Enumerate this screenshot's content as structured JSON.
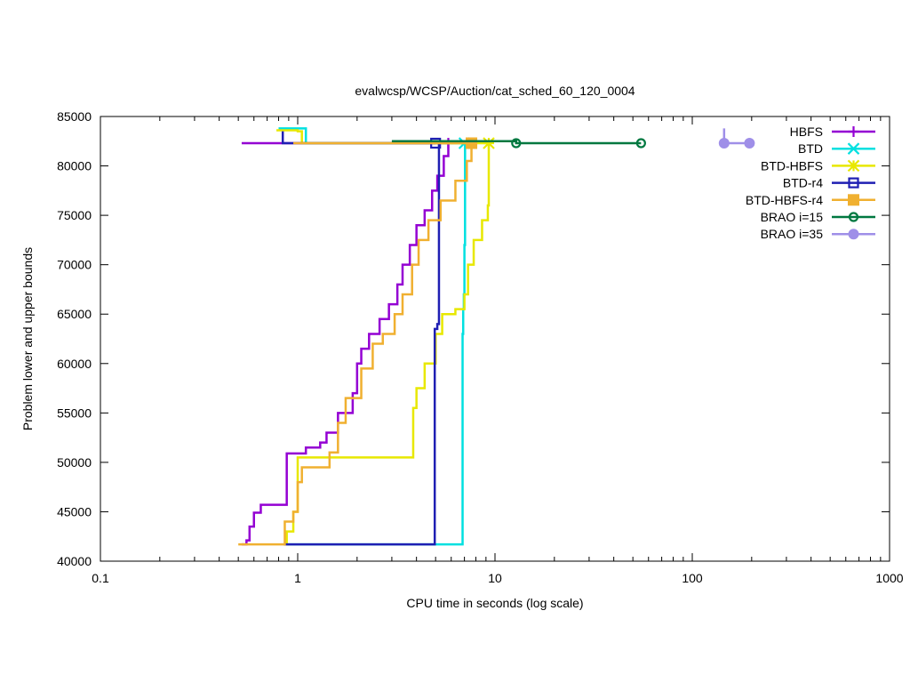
{
  "chart_data": {
    "type": "line",
    "title": "evalwcsp/WCSP/Auction/cat_sched_60_120_0004",
    "xlabel": "CPU time in seconds (log scale)",
    "ylabel": "Problem lower and upper bounds",
    "xscale": "log",
    "xlim": [
      0.1,
      1000
    ],
    "ylim": [
      40000,
      85000
    ],
    "xticks": [
      0.1,
      1,
      10,
      100,
      1000
    ],
    "xtick_labels": [
      "0.1",
      "1",
      "10",
      "100",
      "1000"
    ],
    "yticks": [
      40000,
      45000,
      50000,
      55000,
      60000,
      65000,
      70000,
      75000,
      80000,
      85000
    ],
    "ytick_labels": [
      "40000",
      "45000",
      "50000",
      "55000",
      "60000",
      "65000",
      "70000",
      "75000",
      "80000",
      "85000"
    ],
    "grid": false,
    "legend_position": "top-right",
    "series": [
      {
        "name": "HBFS",
        "color": "#9400d3",
        "marker": "plus",
        "lower": [
          [
            0.52,
            41700
          ],
          [
            0.55,
            42100
          ],
          [
            0.57,
            43500
          ],
          [
            0.6,
            44900
          ],
          [
            0.65,
            45700
          ],
          [
            0.88,
            45700
          ],
          [
            0.88,
            50900
          ],
          [
            1.05,
            50900
          ],
          [
            1.1,
            51500
          ],
          [
            1.3,
            52000
          ],
          [
            1.4,
            53000
          ],
          [
            1.6,
            55000
          ],
          [
            1.9,
            57000
          ],
          [
            2.0,
            60000
          ],
          [
            2.1,
            61500
          ],
          [
            2.3,
            63000
          ],
          [
            2.6,
            64500
          ],
          [
            2.9,
            66000
          ],
          [
            3.2,
            68000
          ],
          [
            3.4,
            70000
          ],
          [
            3.7,
            72000
          ],
          [
            4.0,
            74000
          ],
          [
            4.4,
            75500
          ],
          [
            4.8,
            77500
          ],
          [
            5.1,
            79000
          ],
          [
            5.5,
            81000
          ],
          [
            5.8,
            82300
          ]
        ],
        "upper": [
          [
            0.52,
            82300
          ],
          [
            5.8,
            82300
          ]
        ]
      },
      {
        "name": "BTD",
        "color": "#00e0e0",
        "marker": "x",
        "lower": [
          [
            0.85,
            41700
          ],
          [
            6.85,
            41700
          ],
          [
            6.85,
            63000
          ],
          [
            6.9,
            65500
          ],
          [
            6.95,
            67000
          ],
          [
            7.0,
            72000
          ],
          [
            7.05,
            82300
          ]
        ],
        "upper": [
          [
            0.8,
            83800
          ],
          [
            1.1,
            82300
          ],
          [
            7.0,
            82300
          ]
        ]
      },
      {
        "name": "BTD-HBFS",
        "color": "#e8e800",
        "marker": "star",
        "lower": [
          [
            0.86,
            41700
          ],
          [
            0.88,
            43000
          ],
          [
            0.95,
            45000
          ],
          [
            1.0,
            50500
          ],
          [
            3.8,
            50500
          ],
          [
            3.85,
            55500
          ],
          [
            4.0,
            57500
          ],
          [
            4.4,
            60000
          ],
          [
            5.0,
            63000
          ],
          [
            5.4,
            65000
          ],
          [
            6.3,
            65500
          ],
          [
            7.0,
            67000
          ],
          [
            7.3,
            70000
          ],
          [
            7.8,
            72500
          ],
          [
            8.6,
            74500
          ],
          [
            9.2,
            76000
          ],
          [
            9.3,
            82300
          ]
        ],
        "upper": [
          [
            0.78,
            83600
          ],
          [
            1.0,
            83500
          ],
          [
            1.05,
            82300
          ],
          [
            9.3,
            82300
          ]
        ]
      },
      {
        "name": "BTD-r4",
        "color": "#1f1fb3",
        "marker": "square",
        "lower": [
          [
            0.85,
            41700
          ],
          [
            4.95,
            41700
          ],
          [
            4.95,
            63500
          ],
          [
            5.1,
            64000
          ],
          [
            5.2,
            82300
          ]
        ],
        "upper": [
          [
            0.84,
            83500
          ],
          [
            0.84,
            82300
          ],
          [
            5.0,
            82300
          ]
        ]
      },
      {
        "name": "BTD-HBFS-r4",
        "color": "#f0b030",
        "marker": "filled-square",
        "lower": [
          [
            0.5,
            41700
          ],
          [
            0.85,
            41700
          ],
          [
            0.86,
            44000
          ],
          [
            0.95,
            45000
          ],
          [
            1.0,
            48000
          ],
          [
            1.05,
            49500
          ],
          [
            1.4,
            49500
          ],
          [
            1.45,
            51000
          ],
          [
            1.6,
            54000
          ],
          [
            1.75,
            56500
          ],
          [
            2.1,
            59500
          ],
          [
            2.4,
            62000
          ],
          [
            2.7,
            63000
          ],
          [
            3.1,
            65000
          ],
          [
            3.4,
            67000
          ],
          [
            3.8,
            70000
          ],
          [
            4.1,
            72500
          ],
          [
            4.6,
            74500
          ],
          [
            5.3,
            76500
          ],
          [
            6.3,
            78500
          ],
          [
            7.2,
            80500
          ],
          [
            7.6,
            82300
          ]
        ],
        "upper": [
          [
            0.95,
            82300
          ],
          [
            7.6,
            82300
          ]
        ]
      },
      {
        "name": "BRAO i=15",
        "color": "#007840",
        "marker": "circle",
        "lower": [],
        "upper": [
          [
            3.0,
            82500
          ],
          [
            12.8,
            82300
          ],
          [
            55.0,
            82300
          ]
        ]
      },
      {
        "name": "BRAO i=35",
        "color": "#9f8fe8",
        "marker": "filled-circle",
        "lower": [],
        "upper": [
          [
            145,
            83800
          ],
          [
            145,
            82300
          ],
          [
            195,
            82300
          ]
        ]
      }
    ]
  }
}
